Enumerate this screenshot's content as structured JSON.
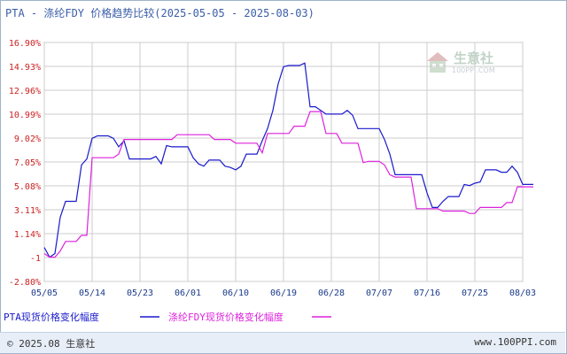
{
  "title": {
    "name": "PTA - 涤纶FDY 价格趋势比较",
    "range": "(2025-05-05 - 2025-08-03)"
  },
  "watermark": {
    "text": "生意社",
    "sub": "100PPI.COM"
  },
  "footer": {
    "left": "© 2025.08 生意社",
    "right": "www.100PPI.com"
  },
  "colors": {
    "pta": "#1a1acc",
    "fdy": "#dd22dd",
    "axis_text": "#cc2222",
    "date_text": "#1a3a8a",
    "grid": "#cccccc"
  },
  "chart_data": {
    "type": "line",
    "yticks": [
      "16.90%",
      "14.93%",
      "12.96%",
      "10.99%",
      "9.02%",
      "7.05%",
      "5.08%",
      "3.11%",
      "1.14%",
      "-1",
      "-2.80%"
    ],
    "ytick_values": [
      16.9,
      14.93,
      12.96,
      10.99,
      9.02,
      7.05,
      5.08,
      3.11,
      1.14,
      -0.83,
      -2.8
    ],
    "ylim": [
      -2.8,
      16.9
    ],
    "xticks": [
      "05/05",
      "05/14",
      "05/23",
      "06/01",
      "06/10",
      "06/19",
      "06/28",
      "07/07",
      "07/16",
      "07/25",
      "08/03"
    ],
    "x_start": "2025-05-05",
    "x_span_days": 90,
    "series": [
      {
        "name": "PTA现货价格变化幅度",
        "color": "#1a1acc",
        "points": [
          [
            0,
            0.0
          ],
          [
            1,
            -0.8
          ],
          [
            2,
            -0.5
          ],
          [
            3,
            2.5
          ],
          [
            4,
            3.8
          ],
          [
            5,
            3.8
          ],
          [
            6,
            3.8
          ],
          [
            7,
            6.8
          ],
          [
            8,
            7.3
          ],
          [
            9,
            9.0
          ],
          [
            10,
            9.2
          ],
          [
            11,
            9.2
          ],
          [
            12,
            9.2
          ],
          [
            13,
            9.0
          ],
          [
            14,
            8.3
          ],
          [
            15,
            8.8
          ],
          [
            16,
            7.3
          ],
          [
            17,
            7.3
          ],
          [
            18,
            7.3
          ],
          [
            19,
            7.3
          ],
          [
            20,
            7.3
          ],
          [
            21,
            7.5
          ],
          [
            22,
            6.9
          ],
          [
            23,
            8.4
          ],
          [
            24,
            8.3
          ],
          [
            25,
            8.3
          ],
          [
            26,
            8.3
          ],
          [
            27,
            8.3
          ],
          [
            28,
            7.4
          ],
          [
            29,
            6.9
          ],
          [
            30,
            6.7
          ],
          [
            31,
            7.2
          ],
          [
            32,
            7.2
          ],
          [
            33,
            7.2
          ],
          [
            34,
            6.7
          ],
          [
            35,
            6.6
          ],
          [
            36,
            6.4
          ],
          [
            37,
            6.7
          ],
          [
            38,
            7.7
          ],
          [
            39,
            7.7
          ],
          [
            40,
            7.7
          ],
          [
            41,
            8.8
          ],
          [
            42,
            9.8
          ],
          [
            43,
            11.3
          ],
          [
            44,
            13.5
          ],
          [
            45,
            14.9
          ],
          [
            46,
            15.0
          ],
          [
            47,
            15.0
          ],
          [
            48,
            15.0
          ],
          [
            49,
            15.2
          ],
          [
            50,
            11.6
          ],
          [
            51,
            11.6
          ],
          [
            52,
            11.3
          ],
          [
            53,
            11.0
          ],
          [
            54,
            11.0
          ],
          [
            55,
            11.0
          ],
          [
            56,
            11.0
          ],
          [
            57,
            11.3
          ],
          [
            58,
            10.9
          ],
          [
            59,
            9.8
          ],
          [
            60,
            9.8
          ],
          [
            61,
            9.8
          ],
          [
            62,
            9.8
          ],
          [
            63,
            9.8
          ],
          [
            64,
            8.9
          ],
          [
            65,
            7.7
          ],
          [
            66,
            6.0
          ],
          [
            67,
            6.0
          ],
          [
            68,
            6.0
          ],
          [
            69,
            6.0
          ],
          [
            70,
            6.0
          ],
          [
            71,
            6.0
          ],
          [
            72,
            4.5
          ],
          [
            73,
            3.3
          ],
          [
            74,
            3.3
          ],
          [
            75,
            3.8
          ],
          [
            76,
            4.2
          ],
          [
            77,
            4.2
          ],
          [
            78,
            4.2
          ],
          [
            79,
            5.2
          ],
          [
            80,
            5.1
          ],
          [
            81,
            5.3
          ],
          [
            82,
            5.4
          ],
          [
            83,
            6.4
          ],
          [
            84,
            6.4
          ],
          [
            85,
            6.4
          ],
          [
            86,
            6.2
          ],
          [
            87,
            6.2
          ],
          [
            88,
            6.7
          ],
          [
            89,
            6.2
          ],
          [
            90,
            5.2
          ],
          [
            91,
            5.2
          ],
          [
            92,
            5.2
          ]
        ]
      },
      {
        "name": "涤纶FDY现货价格变化幅度",
        "color": "#dd22dd",
        "points": [
          [
            0,
            -0.5
          ],
          [
            1,
            -0.8
          ],
          [
            2,
            -0.8
          ],
          [
            3,
            -0.3
          ],
          [
            4,
            0.5
          ],
          [
            5,
            0.5
          ],
          [
            6,
            0.5
          ],
          [
            7,
            1.0
          ],
          [
            8,
            1.0
          ],
          [
            9,
            7.4
          ],
          [
            10,
            7.4
          ],
          [
            11,
            7.4
          ],
          [
            12,
            7.4
          ],
          [
            13,
            7.4
          ],
          [
            14,
            7.7
          ],
          [
            15,
            8.9
          ],
          [
            16,
            8.9
          ],
          [
            17,
            8.9
          ],
          [
            18,
            8.9
          ],
          [
            19,
            8.9
          ],
          [
            20,
            8.9
          ],
          [
            21,
            8.9
          ],
          [
            22,
            8.9
          ],
          [
            23,
            8.9
          ],
          [
            24,
            8.9
          ],
          [
            25,
            9.3
          ],
          [
            26,
            9.3
          ],
          [
            27,
            9.3
          ],
          [
            28,
            9.3
          ],
          [
            29,
            9.3
          ],
          [
            30,
            9.3
          ],
          [
            31,
            9.3
          ],
          [
            32,
            8.9
          ],
          [
            33,
            8.9
          ],
          [
            34,
            8.9
          ],
          [
            35,
            8.9
          ],
          [
            36,
            8.6
          ],
          [
            37,
            8.6
          ],
          [
            38,
            8.6
          ],
          [
            39,
            8.6
          ],
          [
            40,
            8.6
          ],
          [
            41,
            7.8
          ],
          [
            42,
            9.4
          ],
          [
            43,
            9.4
          ],
          [
            44,
            9.4
          ],
          [
            45,
            9.4
          ],
          [
            46,
            9.4
          ],
          [
            47,
            10.0
          ],
          [
            48,
            10.0
          ],
          [
            49,
            10.0
          ],
          [
            50,
            11.2
          ],
          [
            51,
            11.2
          ],
          [
            52,
            11.2
          ],
          [
            53,
            9.4
          ],
          [
            54,
            9.4
          ],
          [
            55,
            9.4
          ],
          [
            56,
            8.6
          ],
          [
            57,
            8.6
          ],
          [
            58,
            8.6
          ],
          [
            59,
            8.6
          ],
          [
            60,
            7.0
          ],
          [
            61,
            7.1
          ],
          [
            62,
            7.1
          ],
          [
            63,
            7.1
          ],
          [
            64,
            6.8
          ],
          [
            65,
            6.0
          ],
          [
            66,
            5.8
          ],
          [
            67,
            5.8
          ],
          [
            68,
            5.8
          ],
          [
            69,
            5.8
          ],
          [
            70,
            3.2
          ],
          [
            71,
            3.2
          ],
          [
            72,
            3.2
          ],
          [
            73,
            3.2
          ],
          [
            74,
            3.2
          ],
          [
            75,
            3.0
          ],
          [
            76,
            3.0
          ],
          [
            77,
            3.0
          ],
          [
            78,
            3.0
          ],
          [
            79,
            3.0
          ],
          [
            80,
            2.8
          ],
          [
            81,
            2.8
          ],
          [
            82,
            3.3
          ],
          [
            83,
            3.3
          ],
          [
            84,
            3.3
          ],
          [
            85,
            3.3
          ],
          [
            86,
            3.3
          ],
          [
            87,
            3.7
          ],
          [
            88,
            3.7
          ],
          [
            89,
            5.0
          ],
          [
            90,
            5.0
          ],
          [
            91,
            5.0
          ],
          [
            92,
            5.0
          ]
        ]
      }
    ],
    "legend_position": "bottom",
    "grid": true
  }
}
